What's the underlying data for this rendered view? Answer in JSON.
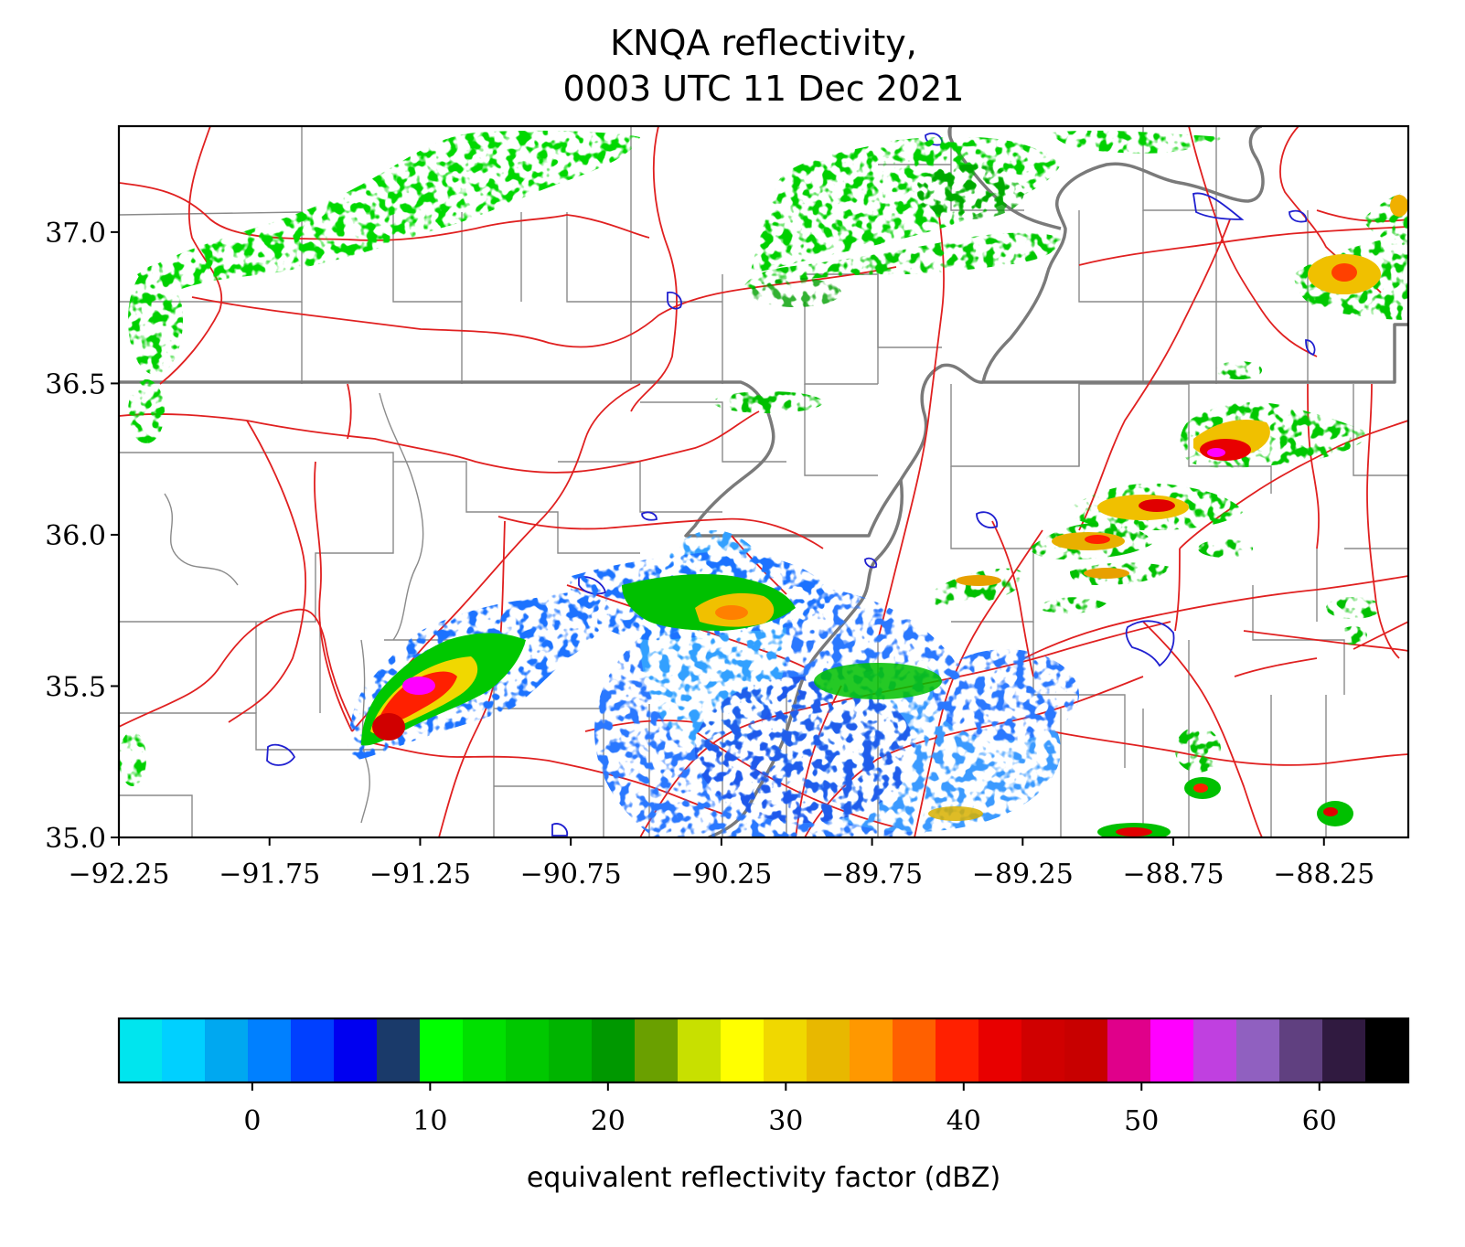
{
  "figure": {
    "title_line1": "KNQA reflectivity,",
    "title_line2": "0003 UTC 11 Dec 2021"
  },
  "chart_data": {
    "type": "heatmap",
    "subject": "radar reflectivity map",
    "x_ticks": [
      "−92.25",
      "−91.75",
      "−91.25",
      "−90.75",
      "−90.25",
      "−89.75",
      "−89.25",
      "−88.75",
      "−88.25"
    ],
    "x_tick_values": [
      -92.25,
      -91.75,
      -91.25,
      -90.75,
      -90.25,
      -89.75,
      -89.25,
      -88.75,
      -88.25
    ],
    "y_ticks": [
      "35.0",
      "35.5",
      "36.0",
      "36.5",
      "37.0"
    ],
    "y_tick_values": [
      35.0,
      35.5,
      36.0,
      36.5,
      37.0
    ],
    "xlim": [
      -92.25,
      -87.97
    ],
    "ylim": [
      35.0,
      37.35
    ],
    "colorbar": {
      "label": "equivalent reflectivity factor (dBZ)",
      "ticks": [
        "0",
        "10",
        "20",
        "30",
        "40",
        "50",
        "60"
      ],
      "tick_values": [
        0,
        10,
        20,
        30,
        40,
        50,
        60
      ],
      "range": [
        -7.5,
        65
      ],
      "colors": [
        "#00e5ee",
        "#00d0ff",
        "#00a8f0",
        "#0080ff",
        "#0040ff",
        "#0000f0",
        "#1a3a6a",
        "#00ff00",
        "#00e000",
        "#00c800",
        "#00b400",
        "#009800",
        "#6aa000",
        "#c8e000",
        "#ffff00",
        "#f0d800",
        "#e8b800",
        "#ff9800",
        "#ff6000",
        "#ff2000",
        "#e80000",
        "#d00000",
        "#c80000",
        "#e0008a",
        "#ff00ff",
        "#c040e0",
        "#9060c0",
        "#604080",
        "#301a40",
        "#000000"
      ]
    },
    "echoes": [
      {
        "region": "northwest band",
        "lon": [
          -92.2,
          -90.9
        ],
        "lat": [
          36.7,
          37.3
        ],
        "dbz": [
          8,
          22
        ]
      },
      {
        "region": "southwest supercell",
        "lon": [
          -91.45,
          -90.8
        ],
        "lat": [
          35.25,
          35.75
        ],
        "dbz": [
          15,
          55
        ]
      },
      {
        "region": "central line",
        "lon": [
          -90.75,
          -90.1
        ],
        "lat": [
          35.6,
          35.85
        ],
        "dbz": [
          5,
          38
        ]
      },
      {
        "region": "Memphis clutter",
        "lon": [
          -90.5,
          -89.6
        ],
        "lat": [
          35.0,
          35.6
        ],
        "dbz": [
          -5,
          15
        ]
      },
      {
        "region": "northeast band",
        "lon": [
          -90.2,
          -89.2
        ],
        "lat": [
          36.7,
          37.3
        ],
        "dbz": [
          8,
          22
        ]
      },
      {
        "region": "eastern line",
        "lon": [
          -89.3,
          -88.2
        ],
        "lat": [
          35.7,
          36.5
        ],
        "dbz": [
          15,
          52
        ]
      },
      {
        "region": "far northeast",
        "lon": [
          -88.15,
          -87.97
        ],
        "lat": [
          36.7,
          37.15
        ],
        "dbz": [
          15,
          40
        ]
      }
    ]
  }
}
